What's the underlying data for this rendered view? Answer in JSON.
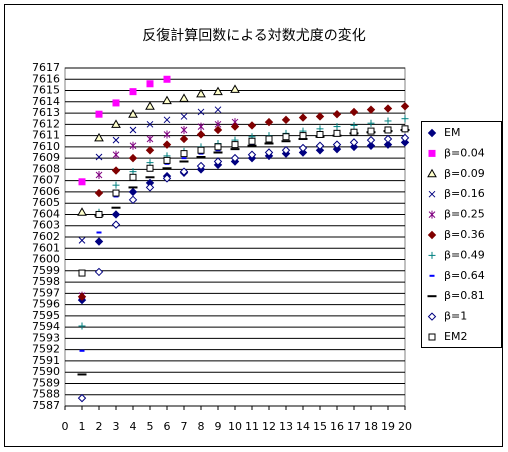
{
  "chart_data": {
    "type": "scatter",
    "title": "反復計算回数による対数尤度の変化",
    "x": [
      1,
      2,
      3,
      4,
      5,
      6,
      7,
      8,
      9,
      10,
      11,
      12,
      13,
      14,
      15,
      16,
      17,
      18,
      19,
      20
    ],
    "xlim": [
      0,
      20
    ],
    "xticks": [
      0,
      1,
      2,
      3,
      4,
      5,
      6,
      7,
      8,
      9,
      10,
      11,
      12,
      13,
      14,
      15,
      16,
      17,
      18,
      19,
      20
    ],
    "ylim": [
      7587,
      7617
    ],
    "yticks": [
      7587,
      7588,
      7589,
      7590,
      7591,
      7592,
      7593,
      7594,
      7595,
      7596,
      7597,
      7598,
      7599,
      7600,
      7601,
      7602,
      7603,
      7604,
      7605,
      7606,
      7607,
      7608,
      7609,
      7610,
      7611,
      7612,
      7613,
      7614,
      7615,
      7616,
      7617
    ],
    "grid": true,
    "legend": "right",
    "series": [
      {
        "name": "EM",
        "color": "#000080",
        "marker": "diamond",
        "values": [
          7596.4,
          7601.6,
          7604.0,
          7606.0,
          7606.8,
          7607.4,
          7607.7,
          7608.0,
          7608.4,
          7608.7,
          7609.0,
          7609.2,
          7609.4,
          7609.5,
          7609.7,
          7609.8,
          7610.0,
          7610.1,
          7610.2,
          7610.4
        ]
      },
      {
        "name": "β=0.04",
        "color": "#ff00ff",
        "marker": "square",
        "values": [
          7606.9,
          7612.9,
          7613.9,
          7614.9,
          7615.6,
          7616.0,
          null,
          null,
          null,
          null,
          null,
          null,
          null,
          null,
          null,
          null,
          null,
          null,
          null,
          null
        ]
      },
      {
        "name": "β=0.09",
        "color": "#000000",
        "marker": "triangle",
        "values": [
          7604.2,
          7610.8,
          7612.0,
          7612.9,
          7613.6,
          7614.1,
          7614.3,
          7614.7,
          7614.9,
          7615.1,
          null,
          null,
          null,
          null,
          null,
          null,
          null,
          null,
          null,
          null
        ]
      },
      {
        "name": "β=0.16",
        "color": "#000080",
        "marker": "cross",
        "values": [
          7601.7,
          7609.1,
          7610.6,
          7611.5,
          7612.0,
          7612.4,
          7612.7,
          7613.1,
          7613.3,
          null,
          null,
          null,
          null,
          null,
          null,
          null,
          null,
          null,
          null,
          null
        ]
      },
      {
        "name": "β=0.25",
        "color": "#800080",
        "marker": "star",
        "values": [
          7596.8,
          7607.5,
          7609.3,
          7610.1,
          7610.7,
          7611.1,
          7611.5,
          7611.8,
          7612.0,
          7612.2,
          null,
          null,
          null,
          null,
          null,
          null,
          null,
          null,
          null,
          null
        ]
      },
      {
        "name": "β=0.36",
        "color": "#800000",
        "marker": "diamond",
        "values": [
          7596.7,
          7605.9,
          7607.9,
          7609.0,
          7609.7,
          7610.2,
          7610.7,
          7611.1,
          7611.5,
          7611.8,
          7611.9,
          7612.2,
          7612.4,
          7612.6,
          7612.7,
          7612.9,
          7613.1,
          7613.3,
          7613.4,
          7613.6
        ]
      },
      {
        "name": "β=0.49",
        "color": "#008080",
        "marker": "plus",
        "values": [
          7594.1,
          7604.2,
          7606.6,
          7607.8,
          7608.6,
          7609.2,
          7609.6,
          7610.0,
          7610.3,
          7610.6,
          7610.9,
          7611.0,
          7611.2,
          7611.4,
          7611.6,
          7611.8,
          7611.9,
          7612.1,
          7612.3,
          7612.5
        ]
      },
      {
        "name": "β=0.64",
        "color": "#0000ff",
        "marker": "dash",
        "values": [
          7591.9,
          7602.4,
          7605.6,
          7607.1,
          7607.9,
          7608.5,
          7609.0,
          7609.4,
          7609.7,
          7610.0,
          7610.2,
          7610.5,
          7610.7,
          7610.9,
          7611.0,
          7611.2,
          7611.4,
          7611.4,
          7611.7,
          7611.8
        ]
      },
      {
        "name": "β=0.81",
        "color": "#000000",
        "marker": "longdash",
        "values": [
          7589.8,
          7603.9,
          7604.6,
          7606.4,
          7607.3,
          7608.1,
          7608.7,
          7609.1,
          7609.5,
          7609.8,
          7610.1,
          7610.3,
          7610.5,
          7610.7,
          7610.9,
          7611.0,
          7611.2,
          7611.3,
          7611.4,
          7611.5
        ]
      },
      {
        "name": "β=1",
        "color": "#000080",
        "marker": "opendiamond",
        "values": [
          7587.7,
          7598.9,
          7603.1,
          7605.3,
          7606.4,
          7607.2,
          7607.8,
          7608.3,
          7608.7,
          7609.0,
          7609.3,
          7609.5,
          7609.7,
          7609.9,
          7610.1,
          7610.2,
          7610.4,
          7610.6,
          7610.7,
          7610.8
        ]
      },
      {
        "name": "EM2",
        "color": "#000000",
        "marker": "opensquare",
        "values": [
          7598.8,
          7604.0,
          7605.9,
          7607.3,
          7608.1,
          7608.8,
          7609.4,
          7609.7,
          7610.0,
          7610.2,
          7610.5,
          7610.7,
          7610.9,
          7611.0,
          7611.1,
          7611.2,
          7611.3,
          7611.4,
          7611.5,
          7611.6
        ]
      }
    ]
  }
}
